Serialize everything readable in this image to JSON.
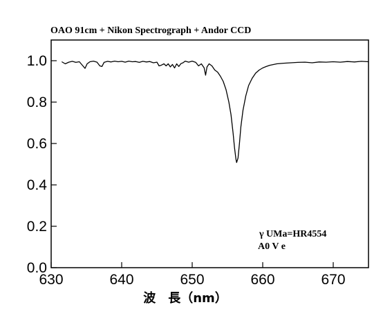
{
  "chart_data": {
    "type": "line",
    "title": "OAO 91cm + Nikon Spectrograph + Andor CCD",
    "xlabel": "波　長（nm）",
    "ylabel": "",
    "xlim": [
      630,
      675
    ],
    "ylim": [
      0.0,
      1.1
    ],
    "x_ticks": [
      630,
      640,
      650,
      660,
      670
    ],
    "x_tick_labels": [
      "630",
      "640",
      "650",
      "660",
      "670"
    ],
    "y_ticks": [
      0.0,
      0.2,
      0.4,
      0.6,
      0.8,
      1.0
    ],
    "y_tick_labels": [
      "0.0",
      "0.2",
      "0.4",
      "0.6",
      "0.8",
      "1.0"
    ],
    "grid": false,
    "annotations": [
      "γ UMa=HR4554",
      "A0 V e"
    ],
    "colors": {
      "line": "#000000",
      "axis": "#000000",
      "background": "#ffffff"
    },
    "series": [
      {
        "values": [
          [
            631.5,
            0.995
          ],
          [
            632.0,
            0.985
          ],
          [
            632.5,
            0.993
          ],
          [
            633.0,
            0.997
          ],
          [
            633.5,
            0.992
          ],
          [
            634.0,
            0.995
          ],
          [
            634.5,
            0.975
          ],
          [
            634.8,
            0.963
          ],
          [
            635.1,
            0.985
          ],
          [
            635.5,
            0.995
          ],
          [
            636.0,
            0.998
          ],
          [
            636.5,
            0.993
          ],
          [
            636.9,
            0.975
          ],
          [
            637.2,
            0.972
          ],
          [
            637.5,
            0.992
          ],
          [
            638.0,
            0.997
          ],
          [
            638.5,
            0.994
          ],
          [
            639.0,
            0.998
          ],
          [
            639.5,
            0.995
          ],
          [
            640.0,
            0.997
          ],
          [
            640.5,
            0.993
          ],
          [
            641.0,
            0.998
          ],
          [
            641.5,
            0.995
          ],
          [
            642.0,
            0.996
          ],
          [
            642.5,
            0.992
          ],
          [
            643.0,
            0.997
          ],
          [
            643.5,
            0.994
          ],
          [
            644.0,
            0.996
          ],
          [
            644.5,
            0.99
          ],
          [
            645.0,
            0.993
          ],
          [
            645.3,
            0.975
          ],
          [
            645.6,
            0.978
          ],
          [
            646.0,
            0.985
          ],
          [
            646.3,
            0.975
          ],
          [
            646.6,
            0.985
          ],
          [
            646.9,
            0.97
          ],
          [
            647.2,
            0.982
          ],
          [
            647.5,
            0.965
          ],
          [
            647.8,
            0.985
          ],
          [
            648.1,
            0.972
          ],
          [
            648.4,
            0.986
          ],
          [
            648.7,
            0.99
          ],
          [
            649.0,
            0.998
          ],
          [
            649.5,
            0.993
          ],
          [
            650.0,
            0.998
          ],
          [
            650.5,
            0.992
          ],
          [
            650.9,
            0.975
          ],
          [
            651.3,
            0.985
          ],
          [
            651.7,
            0.965
          ],
          [
            651.9,
            0.93
          ],
          [
            652.1,
            0.97
          ],
          [
            652.4,
            0.985
          ],
          [
            652.8,
            0.975
          ],
          [
            653.2,
            0.955
          ],
          [
            653.6,
            0.945
          ],
          [
            654.0,
            0.925
          ],
          [
            654.4,
            0.9
          ],
          [
            654.8,
            0.86
          ],
          [
            655.2,
            0.8
          ],
          [
            655.5,
            0.74
          ],
          [
            655.8,
            0.65
          ],
          [
            656.0,
            0.58
          ],
          [
            656.2,
            0.525
          ],
          [
            656.3,
            0.508
          ],
          [
            656.5,
            0.53
          ],
          [
            656.7,
            0.6
          ],
          [
            656.9,
            0.68
          ],
          [
            657.2,
            0.76
          ],
          [
            657.6,
            0.83
          ],
          [
            658.0,
            0.88
          ],
          [
            658.5,
            0.915
          ],
          [
            659.0,
            0.94
          ],
          [
            659.5,
            0.955
          ],
          [
            660.0,
            0.965
          ],
          [
            660.5,
            0.972
          ],
          [
            661.0,
            0.978
          ],
          [
            662.0,
            0.985
          ],
          [
            663.0,
            0.988
          ],
          [
            664.0,
            0.99
          ],
          [
            665.0,
            0.992
          ],
          [
            666.0,
            0.993
          ],
          [
            667.0,
            0.99
          ],
          [
            668.0,
            0.994
          ],
          [
            669.0,
            0.993
          ],
          [
            670.0,
            0.995
          ],
          [
            671.0,
            0.993
          ],
          [
            672.0,
            0.996
          ],
          [
            673.0,
            0.994
          ],
          [
            674.0,
            0.997
          ],
          [
            675.0,
            0.995
          ]
        ]
      }
    ]
  }
}
